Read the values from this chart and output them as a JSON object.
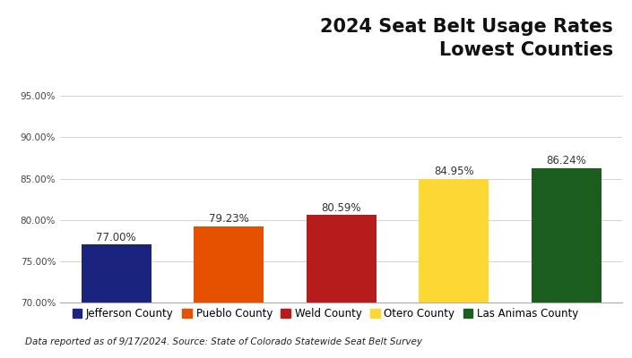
{
  "title_line1": "2024 Seat Belt Usage Rates",
  "title_line2": "Lowest Counties",
  "categories": [
    "Jefferson County",
    "Pueblo County",
    "Weld County",
    "Otero County",
    "Las Animas County"
  ],
  "values": [
    77.0,
    79.23,
    80.59,
    84.95,
    86.24
  ],
  "bar_colors": [
    "#1a237e",
    "#e65100",
    "#b71c1c",
    "#fdd835",
    "#1b5e20"
  ],
  "bar_labels": [
    "77.00%",
    "79.23%",
    "80.59%",
    "84.95%",
    "86.24%"
  ],
  "ylim": [
    70.0,
    96.0
  ],
  "yticks": [
    70.0,
    75.0,
    80.0,
    85.0,
    90.0,
    95.0
  ],
  "ytick_labels": [
    "70.00%",
    "75.00%",
    "80.00%",
    "85.00%",
    "90.00%",
    "95.00%"
  ],
  "header_bg_color": "#ebebeb",
  "orange_bar_color": "#e07820",
  "chart_bg_color": "#ffffff",
  "footnote": "Data reported as of 9/17/2024. Source: State of Colorado Statewide Seat Belt Survey",
  "title_fontsize": 15,
  "label_fontsize": 8.5,
  "legend_fontsize": 8.5,
  "footnote_fontsize": 7.5,
  "ytick_fontsize": 7.5
}
